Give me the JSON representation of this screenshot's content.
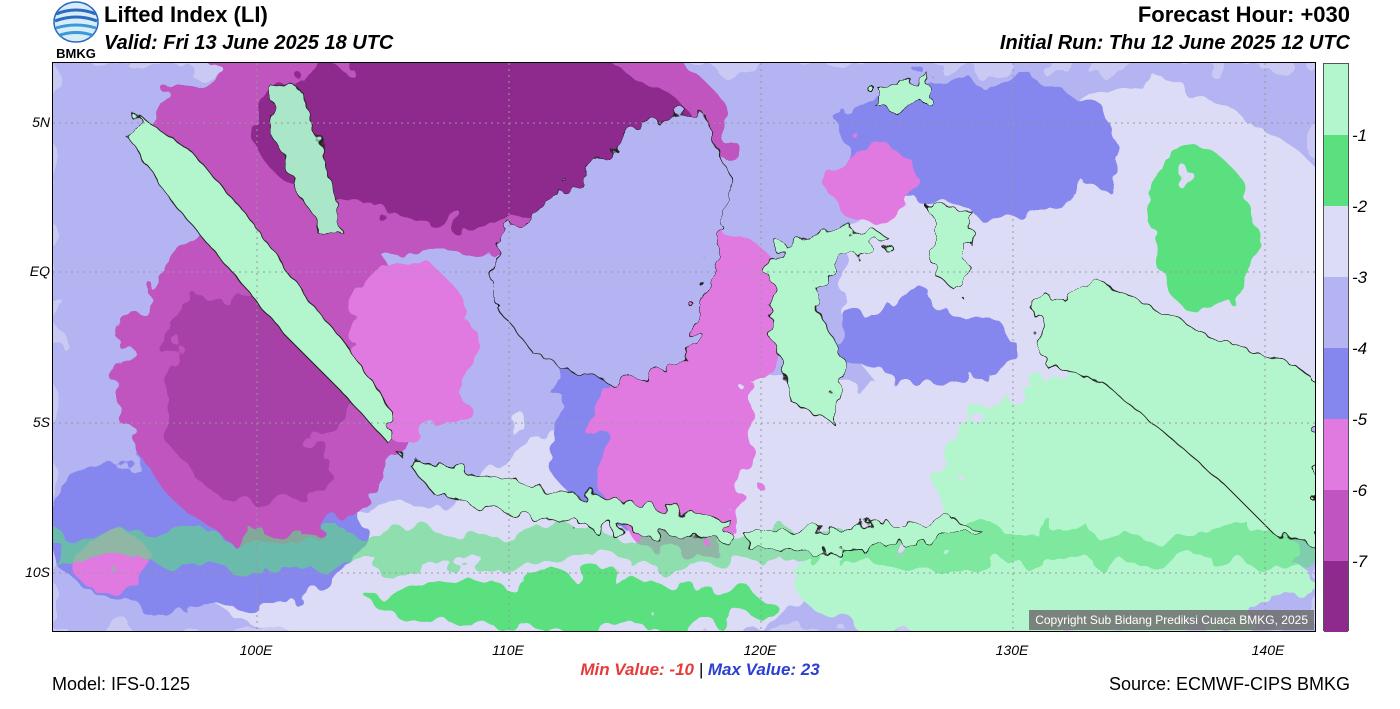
{
  "header": {
    "title": "Lifted Index (LI)",
    "valid": "Valid: Fri 13 June 2025 18 UTC",
    "forecast_hour": "Forecast Hour: +030",
    "initial_run": "Initial Run: Thu 12 June 2025 12 UTC"
  },
  "logo": {
    "text": "BMKG",
    "icon": "bmkg-globe-logo"
  },
  "map": {
    "lat_ticks": [
      {
        "label": "5N",
        "lat": 5
      },
      {
        "label": "EQ",
        "lat": 0
      },
      {
        "label": "5S",
        "lat": -5
      },
      {
        "label": "10S",
        "lat": -10
      }
    ],
    "lon_ticks": [
      {
        "label": "100E",
        "lon": 100
      },
      {
        "label": "110E",
        "lon": 110
      },
      {
        "label": "120E",
        "lon": 120
      },
      {
        "label": "130E",
        "lon": 130
      },
      {
        "label": "140E",
        "lon": 140
      }
    ],
    "copyright": "Copyright Sub Bidang Prediksi Cuaca BMKG, 2025"
  },
  "colorbar": {
    "labels": [
      "-1",
      "-2",
      "-3",
      "-4",
      "-5",
      "-6",
      "-7"
    ],
    "colors": {
      "above_-1": "#b3f5cc",
      "-1_to_-2": "#5ae07f",
      "-2_to_-3": "#dcdcf6",
      "-3_to_-4": "#b4b4f2",
      "-4_to_-5": "#8686ef",
      "-5_to_-6": "#e07ae0",
      "-6_to_-7": "#c054c0",
      "below_-7": "#8e2a8e"
    }
  },
  "stats": {
    "min_label": "Min Value: -10",
    "separator": "|",
    "max_label": "Max Value:  23"
  },
  "footer": {
    "model": "Model: IFS-0.125",
    "source": "Source: ECMWF-CIPS BMKG"
  }
}
